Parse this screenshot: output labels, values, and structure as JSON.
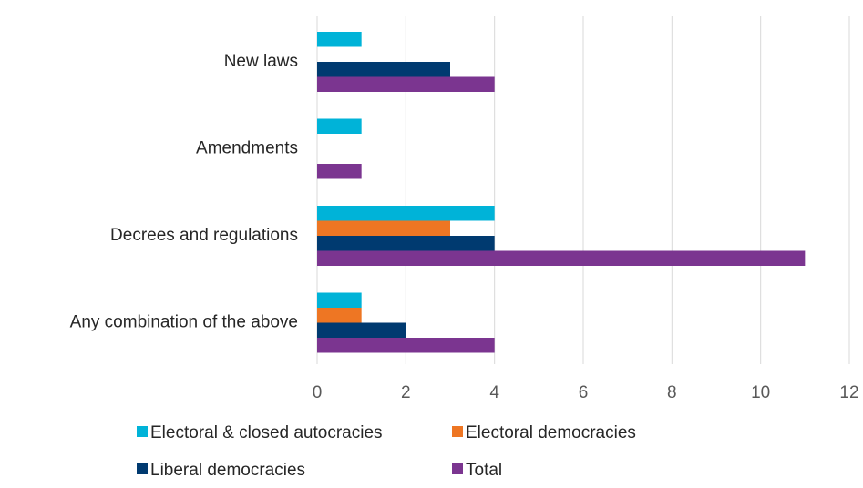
{
  "chart_data": {
    "type": "bar",
    "orientation": "horizontal",
    "categories": [
      "New laws",
      "Amendments",
      "Decrees and regulations",
      "Any combination of the above"
    ],
    "series": [
      {
        "name": "Electoral & closed autocracies",
        "color": "#00B3D8",
        "values": [
          1,
          1,
          4,
          1
        ]
      },
      {
        "name": "Electoral democracies",
        "color": "#EE7623",
        "values": [
          0,
          0,
          3,
          1
        ]
      },
      {
        "name": "Liberal democracies",
        "color": "#003A70",
        "values": [
          3,
          0,
          4,
          2
        ]
      },
      {
        "name": "Total",
        "color": "#7B3590",
        "values": [
          4,
          1,
          11,
          4
        ]
      }
    ],
    "xlim": [
      0,
      12
    ],
    "xticks": [
      "0",
      "2",
      "4",
      "6",
      "8",
      "10",
      "12"
    ],
    "grid": "vertical",
    "legend_position": "bottom"
  }
}
